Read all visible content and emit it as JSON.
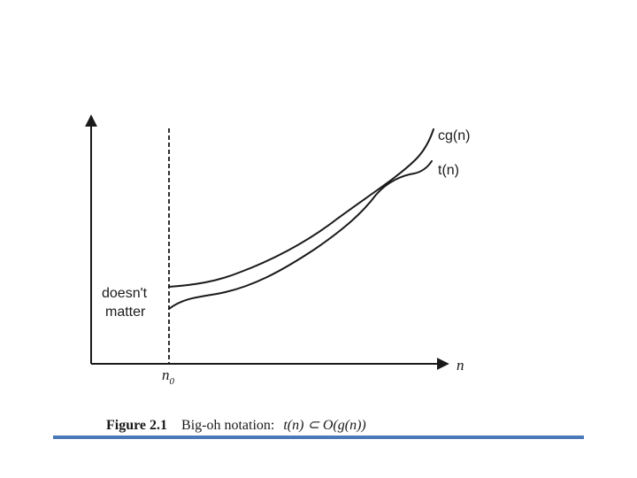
{
  "diagram": {
    "x_axis_label": "n",
    "threshold_label_main": "n",
    "threshold_label_sub": "0",
    "annotation_line1": "doesn't",
    "annotation_line2": "matter",
    "upper_curve_label": "cg(n)",
    "lower_curve_label": "t(n)"
  },
  "caption": {
    "figure_number": "Figure 2.1",
    "text": "Big-oh notation:",
    "math": "t(n) ⊂ O(g(n))"
  },
  "colors": {
    "ink": "#1a1a1a",
    "rule_blue": "#4a78b8"
  }
}
